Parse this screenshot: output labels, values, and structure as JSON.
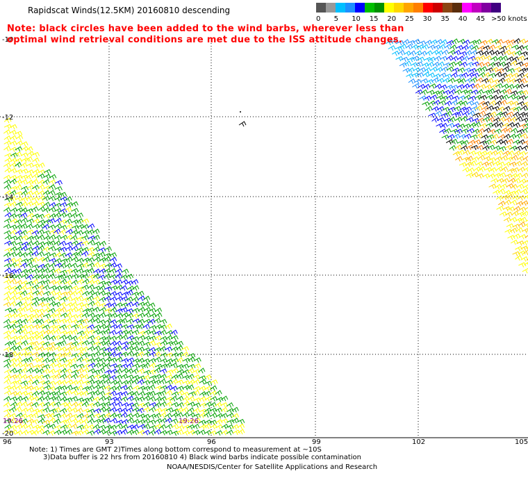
{
  "title": "Rapidscat Winds(12.5KM) 20160810 descending",
  "note": {
    "line1": "Note: black circles have been added to the wind barbs, wherever less than",
    "line2": "optimal wind retrieval conditions are met due to the ISS attitude changes."
  },
  "legend": {
    "units": ">50 knots",
    "labels": [
      "0",
      "5",
      "10",
      "15",
      "20",
      "25",
      "30",
      "35",
      "40",
      "45"
    ],
    "colors": [
      "#555555",
      "#999999",
      "#00bfff",
      "#1e90ff",
      "#0000ff",
      "#00c000",
      "#009000",
      "#ffff00",
      "#ffd700",
      "#ffa500",
      "#ff7f00",
      "#ff0000",
      "#cc0000",
      "#8b4513",
      "#5a2d0c",
      "#ff00ff",
      "#c000c0",
      "#8000a0",
      "#400080"
    ]
  },
  "axes": {
    "x_ticks": [
      "96",
      "93",
      "96",
      "99",
      "102",
      "105"
    ],
    "y_ticks": [
      "-10",
      "-12",
      "-14",
      "-16",
      "-18",
      "-20"
    ]
  },
  "swath_time_labels": [
    "19:26",
    "19:26"
  ],
  "footer": {
    "line1": "Note: 1) Times are GMT 2)Times along bottom correspond to measurement at ~10S",
    "line2": "3)Data buffer is 22 hrs from 20160810 4) Black wind barbs indicate possible contamination",
    "line3": "NOAA/NESDIS/Center for Satellite Applications and Research"
  }
}
